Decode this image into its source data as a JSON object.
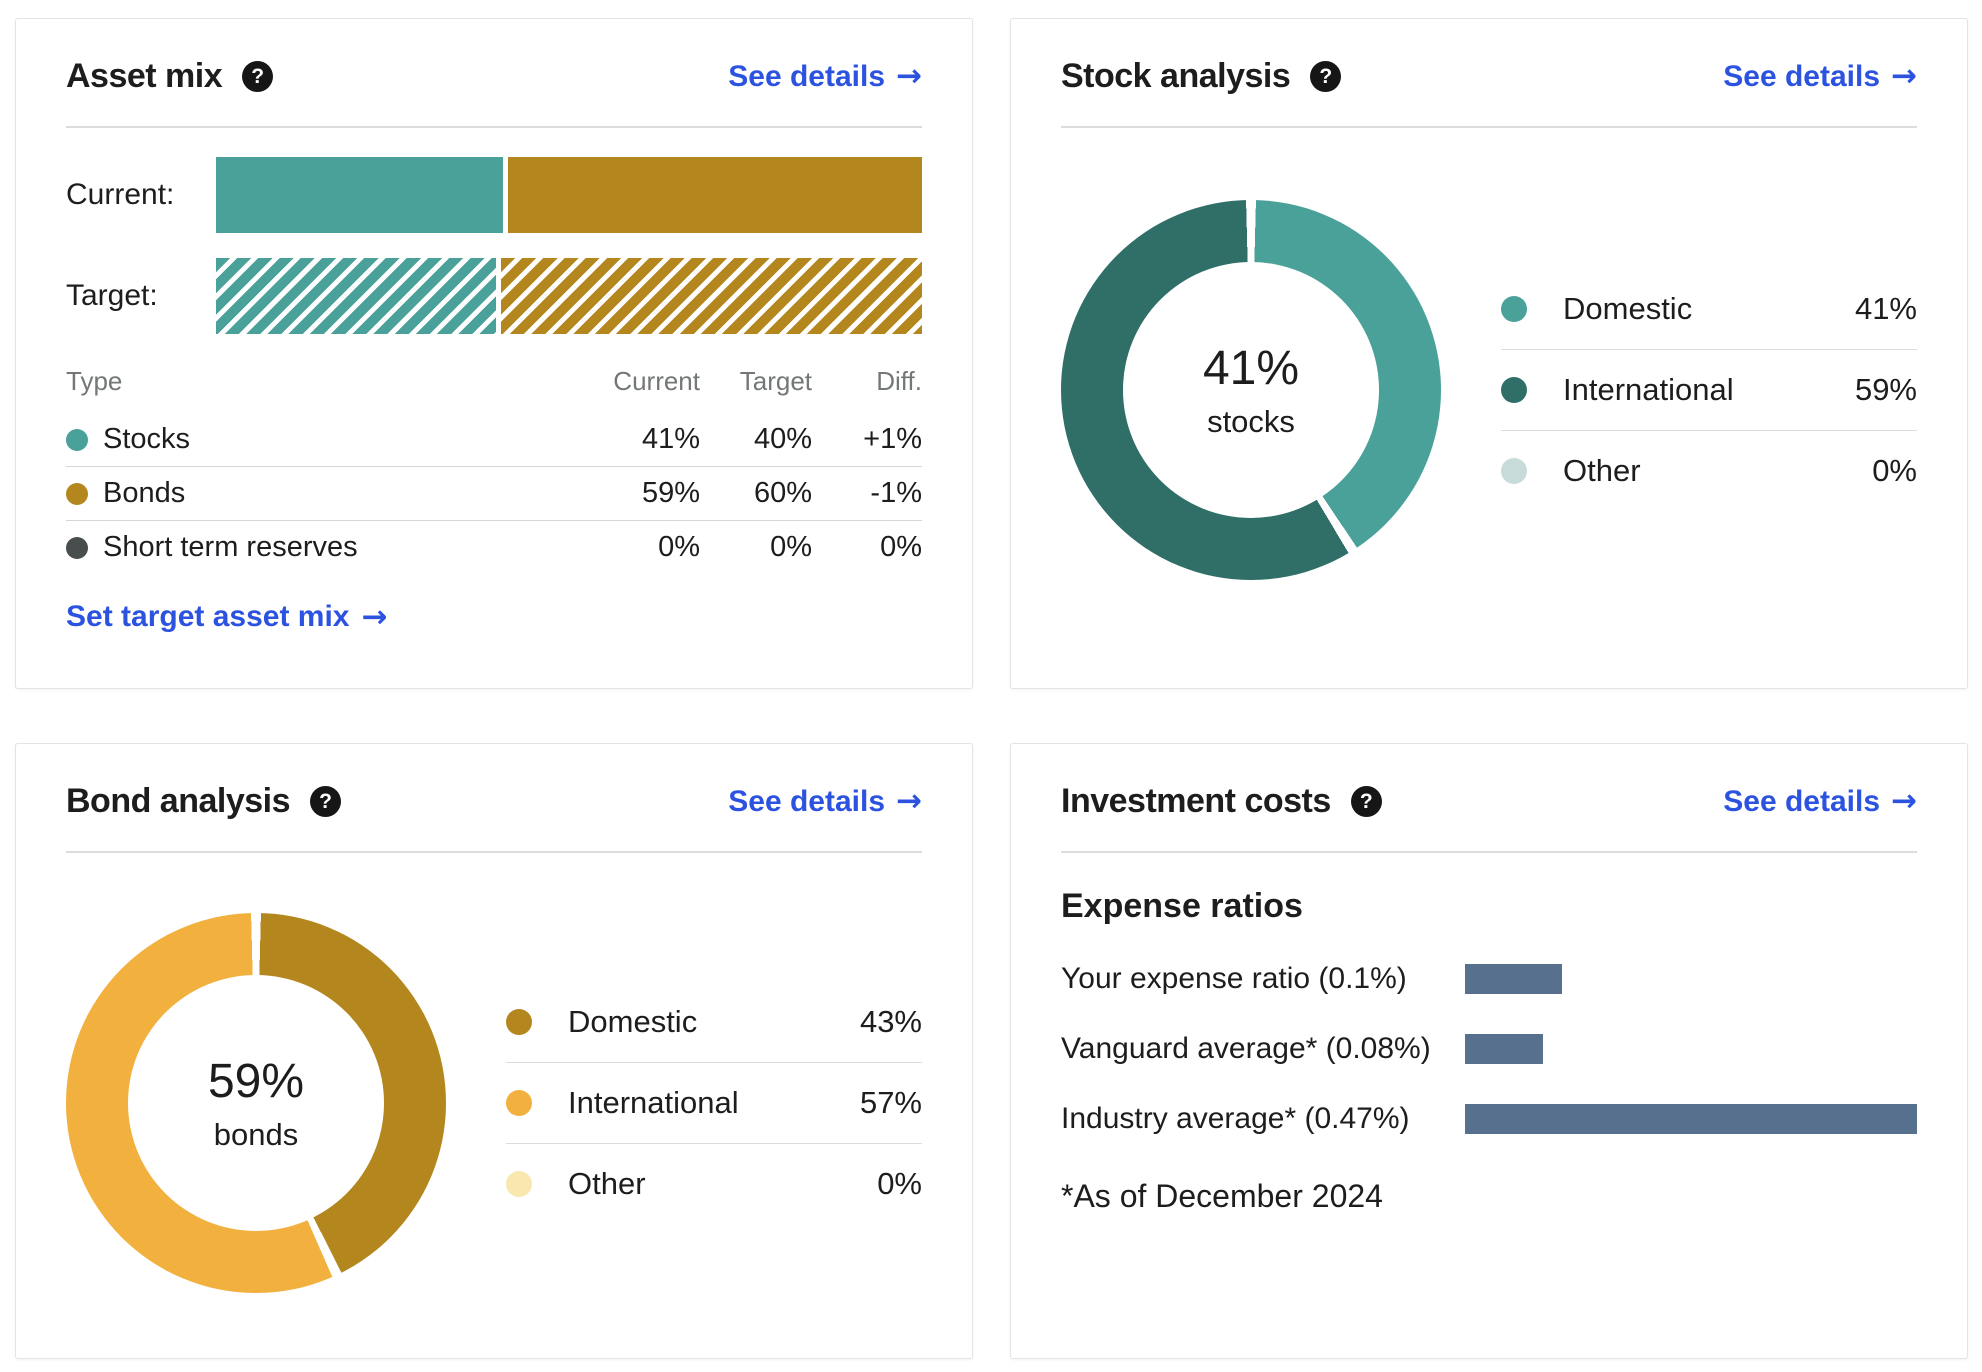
{
  "icons": {
    "help": "?",
    "arrow": "→"
  },
  "cards": {
    "asset_mix": {
      "title": "Asset mix",
      "see_details": "See details",
      "bars": [
        {
          "label": "Current:",
          "style": "solid",
          "segments": [
            {
              "name": "Stocks",
              "value": 41,
              "color": "#4aa19a"
            },
            {
              "name": "Bonds",
              "value": 59,
              "color": "#b4861e"
            }
          ]
        },
        {
          "label": "Target:",
          "style": "hatched",
          "segments": [
            {
              "name": "Stocks",
              "value": 40,
              "color": "#4aa19a"
            },
            {
              "name": "Bonds",
              "value": 60,
              "color": "#b4861e"
            }
          ]
        }
      ],
      "table": {
        "headers": [
          "Type",
          "Current",
          "Target",
          "Diff."
        ],
        "rows": [
          {
            "type": "Stocks",
            "dot_color": "#4aa19a",
            "current": "41%",
            "target": "40%",
            "diff": "+1%"
          },
          {
            "type": "Bonds",
            "dot_color": "#b4861e",
            "current": "59%",
            "target": "60%",
            "diff": "-1%"
          },
          {
            "type": "Short term reserves",
            "dot_color": "#484e4e",
            "current": "0%",
            "target": "0%",
            "diff": "0%"
          }
        ]
      },
      "link": "Set target asset mix"
    },
    "stock_analysis": {
      "title": "Stock analysis",
      "see_details": "See details",
      "center_value": "41%",
      "center_label": "stocks",
      "segments": [
        {
          "label": "Domestic",
          "pct": "41%",
          "value": 41,
          "color": "#4aa19a"
        },
        {
          "label": "International",
          "pct": "59%",
          "value": 59,
          "color": "#2f6f68"
        },
        {
          "label": "Other",
          "pct": "0%",
          "value": 0,
          "color": "#c7dbd8"
        }
      ]
    },
    "bond_analysis": {
      "title": "Bond analysis",
      "see_details": "See details",
      "center_value": "59%",
      "center_label": "bonds",
      "segments": [
        {
          "label": "Domestic",
          "pct": "43%",
          "value": 43,
          "color": "#b4861e"
        },
        {
          "label": "International",
          "pct": "57%",
          "value": 57,
          "color": "#f2b13e"
        },
        {
          "label": "Other",
          "pct": "0%",
          "value": 0,
          "color": "#f9e7b0"
        }
      ]
    },
    "investment_costs": {
      "title": "Investment costs",
      "see_details": "See details",
      "section_title": "Expense ratios",
      "bar_color": "#56708e",
      "rows": [
        {
          "label": "Your expense ratio (0.1%)",
          "value": 0.1
        },
        {
          "label": "Vanguard average* (0.08%)",
          "value": 0.08
        },
        {
          "label": "Industry average* (0.47%)",
          "value": 0.47
        }
      ],
      "footnote": "*As of December 2024"
    }
  },
  "chart_data": [
    {
      "type": "bar",
      "subtype": "stacked-horizontal",
      "title": "Asset mix",
      "categories": [
        "Current",
        "Target"
      ],
      "series": [
        {
          "name": "Stocks",
          "values": [
            41,
            40
          ]
        },
        {
          "name": "Bonds",
          "values": [
            59,
            60
          ]
        },
        {
          "name": "Short term reserves",
          "values": [
            0,
            0
          ]
        }
      ]
    },
    {
      "type": "pie",
      "subtype": "donut",
      "title": "Stock analysis",
      "categories": [
        "Domestic",
        "International",
        "Other"
      ],
      "values": [
        41,
        59,
        0
      ],
      "center_text": "41% stocks"
    },
    {
      "type": "pie",
      "subtype": "donut",
      "title": "Bond analysis",
      "categories": [
        "Domestic",
        "International",
        "Other"
      ],
      "values": [
        43,
        57,
        0
      ],
      "center_text": "59% bonds"
    },
    {
      "type": "bar",
      "subtype": "horizontal",
      "title": "Investment costs — Expense ratios",
      "categories": [
        "Your expense ratio",
        "Vanguard average*",
        "Industry average*"
      ],
      "values": [
        0.1,
        0.08,
        0.47
      ],
      "xlim": [
        0,
        0.47
      ]
    }
  ]
}
